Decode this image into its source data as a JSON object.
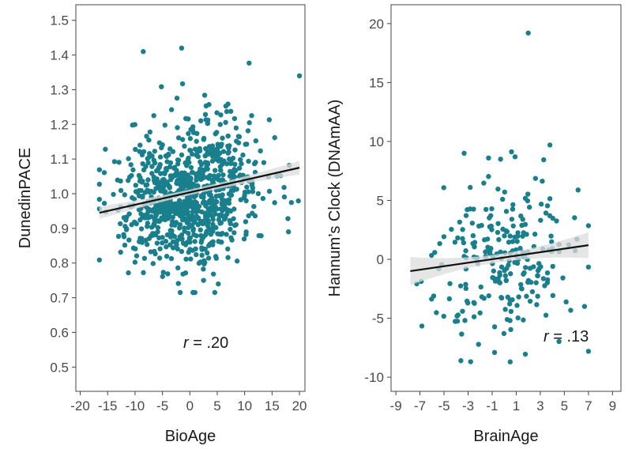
{
  "chart_data": [
    {
      "type": "scatter",
      "xlabel": "BioAge",
      "ylabel": "DunedinPACE",
      "xlim": [
        -20.8,
        21.0
      ],
      "ylim": [
        0.43,
        1.545
      ],
      "xticks": [
        -20,
        -15,
        -10,
        -5,
        0,
        5,
        10,
        15,
        20
      ],
      "yticks": [
        0.5,
        0.6,
        0.7,
        0.8,
        0.9,
        1.0,
        1.1,
        1.2,
        1.3,
        1.4,
        1.5
      ],
      "xtick_labels": [
        "-20",
        "-15",
        "-10",
        "-5",
        "0",
        "5",
        "10",
        "15",
        "20"
      ],
      "ytick_labels": [
        "0.5",
        "0.6",
        "0.7",
        "0.8",
        "0.9",
        "1.0",
        "1.1",
        "1.2",
        "1.3",
        "1.4",
        "1.5"
      ],
      "annotation": {
        "r": "r",
        "value": " = .20"
      },
      "n_points": 900,
      "x_mean": 0,
      "x_sd": 6,
      "y_mean": 1.0,
      "y_sd": 0.1,
      "seed": 7,
      "x_range": [
        -16.5,
        19.8
      ],
      "y_range": [
        0.715,
        1.425
      ],
      "outliers": [
        [
          -8.5,
          1.41
        ],
        [
          -1.5,
          1.42
        ],
        [
          20,
          1.34
        ],
        [
          18,
          0.89
        ],
        [
          2.5,
          0.75
        ]
      ],
      "fit": {
        "x": [
          -16.5,
          20
        ],
        "y": [
          0.945,
          1.075
        ],
        "ci_start": 0.018,
        "ci_end": 0.02,
        "ci_mid": 0.008
      },
      "point_color": "#1a7f8c",
      "band_color": "#dcdcdc",
      "line_color": "#111111"
    },
    {
      "type": "scatter",
      "xlabel": "BrainAge",
      "ylabel": "Hannum’s Clock (DNAmAA)",
      "xlim": [
        -9.4,
        9.7
      ],
      "ylim": [
        -11.2,
        21.6
      ],
      "xticks": [
        -9,
        -7,
        -5,
        -3,
        -1,
        1,
        3,
        5,
        7,
        9
      ],
      "yticks": [
        -10,
        -5,
        0,
        5,
        10,
        15,
        20
      ],
      "xtick_labels": [
        "-9",
        "-7",
        "-5",
        "-3",
        "-1",
        "1",
        "3",
        "5",
        "7",
        "9"
      ],
      "ytick_labels": [
        "-10",
        "-5",
        "0",
        "5",
        "10",
        "15",
        "20"
      ],
      "annotation": {
        "r": "r",
        "value": " = .13"
      },
      "n_points": 240,
      "x_mean": 0,
      "x_sd": 3.2,
      "y_mean": 0,
      "y_sd": 3.6,
      "seed": 21,
      "x_range": [
        -8,
        7
      ],
      "y_range": [
        -8.8,
        9.8
      ],
      "outliers": [
        [
          2,
          19.2
        ],
        [
          -1.3,
          8.6
        ],
        [
          -0.3,
          8.5
        ],
        [
          0.9,
          8.7
        ],
        [
          3.8,
          9.7
        ],
        [
          0.5,
          -8.7
        ],
        [
          -3.6,
          -8.6
        ],
        [
          -0.8,
          -7.9
        ]
      ],
      "fit": {
        "x": [
          -7.8,
          7
        ],
        "y": [
          -1.0,
          1.2
        ],
        "ci_start": 1.2,
        "ci_end": 1.1,
        "ci_mid": 0.35
      },
      "point_color": "#1a7f8c",
      "band_color": "#dcdcdc",
      "line_color": "#111111"
    }
  ]
}
